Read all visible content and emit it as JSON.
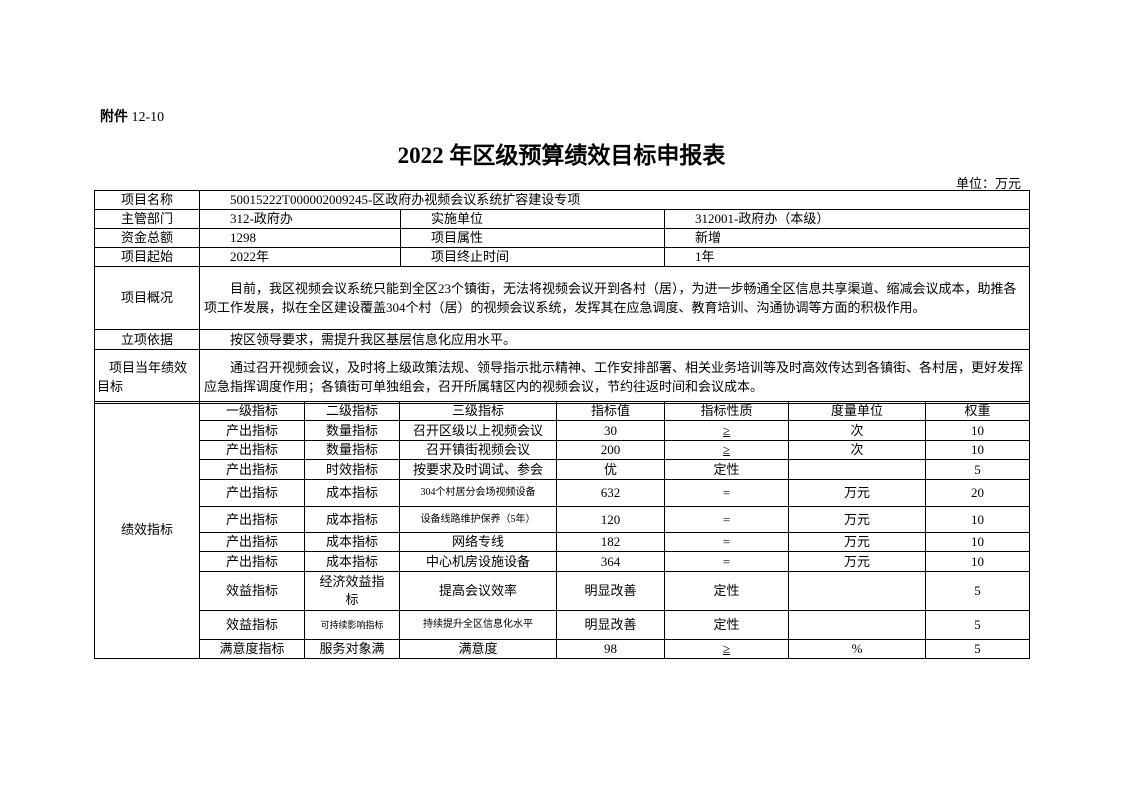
{
  "attachment": {
    "label": "附件",
    "number": "12-10"
  },
  "title": {
    "year": "2022",
    "text": "年区级预算绩效目标申报表"
  },
  "unit": "单位：万元",
  "info": {
    "project_name_label": "项目名称",
    "project_name": "50015222T000002009245-区政府办视频会议系统扩容建设专项",
    "dept_label": "主管部门",
    "dept": "312-政府办",
    "impl_label": "实施单位",
    "impl": "312001-政府办（本级）",
    "fund_label": "资金总额",
    "fund": "1298",
    "attr_label": "项目属性",
    "attr": "新增",
    "start_label": "项目起始",
    "start": "2022年",
    "end_label": "项目终止时间",
    "end": "1年",
    "overview_label": "项目概况",
    "overview": "目前，我区视频会议系统只能到全区23个镇街，无法将视频会议开到各村（居），为进一步畅通全区信息共享渠道、缩减会议成本，助推各项工作发展，拟在全区建设覆盖304个村（居）的视频会议系统，发挥其在应急调度、教育培训、沟通协调等方面的积极作用。",
    "basis_label": "立项依据",
    "basis": "按区领导要求，需提升我区基层信息化应用水平。",
    "goal_label": "项目当年绩效目标",
    "goal": "通过召开视频会议，及时将上级政策法规、领导指示批示精神、工作安排部署、相关业务培训等及时高效传达到各镇街、各村居，更好发挥应急指挥调度作用；各镇街可单独组会，召开所属辖区内的视频会议，节约往返时间和会议成本。"
  },
  "indicators": {
    "label": "绩效指标",
    "headers": [
      "一级指标",
      "二级指标",
      "三级指标",
      "指标值",
      "指标性质",
      "度量单位",
      "权重"
    ],
    "rows": [
      [
        "产出指标",
        "数量指标",
        "召开区级以上视频会议",
        "30",
        "≥",
        "次",
        "10"
      ],
      [
        "产出指标",
        "数量指标",
        "召开镇街视频会议",
        "200",
        "≥",
        "次",
        "10"
      ],
      [
        "产出指标",
        "时效指标",
        "按要求及时调试、参会",
        "优",
        "定性",
        "",
        "5"
      ],
      [
        "产出指标",
        "成本指标",
        "304个村居分会场视频设备",
        "632",
        "=",
        "万元",
        "20"
      ],
      [
        "产出指标",
        "成本指标",
        "设备线路维护保养（5年）",
        "120",
        "=",
        "万元",
        "10"
      ],
      [
        "产出指标",
        "成本指标",
        "网络专线",
        "182",
        "=",
        "万元",
        "10"
      ],
      [
        "产出指标",
        "成本指标",
        "中心机房设施设备",
        "364",
        "=",
        "万元",
        "10"
      ],
      [
        "效益指标",
        "经济效益指标",
        "提高会议效率",
        "明显改善",
        "定性",
        "",
        "5"
      ],
      [
        "效益指标",
        "可持续影响指标",
        "持续提升全区信息化水平",
        "明显改善",
        "定性",
        "",
        "5"
      ],
      [
        "满意度指标",
        "服务对象满",
        "满意度",
        "98",
        "≥",
        "%",
        "5"
      ]
    ]
  }
}
